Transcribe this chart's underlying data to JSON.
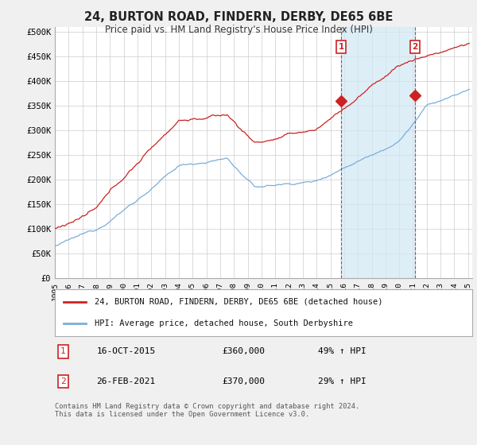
{
  "title_line1": "24, BURTON ROAD, FINDERN, DERBY, DE65 6BE",
  "title_line2": "Price paid vs. HM Land Registry's House Price Index (HPI)",
  "ylabel_ticks": [
    "£0",
    "£50K",
    "£100K",
    "£150K",
    "£200K",
    "£250K",
    "£300K",
    "£350K",
    "£400K",
    "£450K",
    "£500K"
  ],
  "ytick_values": [
    0,
    50000,
    100000,
    150000,
    200000,
    250000,
    300000,
    350000,
    400000,
    450000,
    500000
  ],
  "ylim": [
    0,
    510000
  ],
  "xlim_start": 1995.0,
  "xlim_end": 2025.3,
  "hpi_color": "#7aaddb",
  "price_color": "#cc2222",
  "marker1_x": 2015.79,
  "marker1_y": 360000,
  "marker2_x": 2021.15,
  "marker2_y": 370000,
  "legend_entry1": "24, BURTON ROAD, FINDERN, DERBY, DE65 6BE (detached house)",
  "legend_entry2": "HPI: Average price, detached house, South Derbyshire",
  "annotation1_date": "16-OCT-2015",
  "annotation1_price": "£360,000",
  "annotation1_hpi": "49% ↑ HPI",
  "annotation2_date": "26-FEB-2021",
  "annotation2_price": "£370,000",
  "annotation2_hpi": "29% ↑ HPI",
  "footer": "Contains HM Land Registry data © Crown copyright and database right 2024.\nThis data is licensed under the Open Government Licence v3.0.",
  "background_color": "#f0f0f0",
  "plot_bg_color": "#ffffff",
  "grid_color": "#cccccc",
  "shade_color": "#d0e8f5"
}
